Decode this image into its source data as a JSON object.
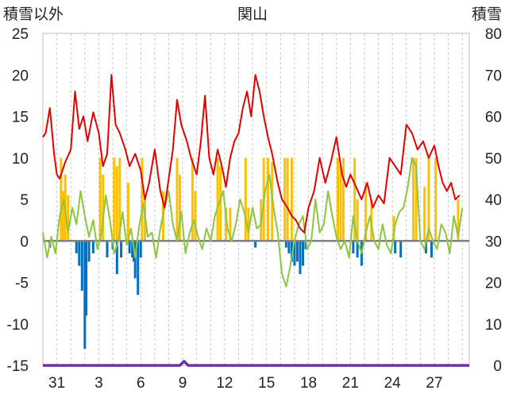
{
  "chart_data": {
    "type": "bar+line",
    "title": "関山",
    "left_axis_label": "積雪以外",
    "right_axis_label": "積雪",
    "left_ylim": [
      -15,
      25
    ],
    "left_ticks": [
      "25",
      "20",
      "15",
      "10",
      "5",
      "0",
      "-5",
      "-10",
      "-15"
    ],
    "right_ylim": [
      0,
      80
    ],
    "right_ticks": [
      "80",
      "70",
      "60",
      "50",
      "40",
      "30",
      "20",
      "10",
      "0"
    ],
    "x_labels": [
      "31",
      "3",
      "6",
      "9",
      "12",
      "15",
      "18",
      "21",
      "24",
      "27"
    ],
    "x_label_days": [
      2,
      5,
      8,
      11,
      14,
      17,
      20,
      23,
      26,
      29
    ],
    "x_range_days": [
      1,
      31.5
    ],
    "grid": {
      "vertical": true,
      "horizontal": false
    },
    "colors": {
      "max_temp": "#e60000",
      "min_temp": "#8cc63f",
      "precip": "#ffc000",
      "negative": "#0070c0",
      "snow": "#7030a0",
      "zero_line": "#808080",
      "grid": "#c8c8c8"
    },
    "max_temp": {
      "x": [
        1.0,
        1.2,
        1.5,
        1.8,
        2.0,
        2.2,
        2.6,
        3.0,
        3.3,
        3.6,
        3.9,
        4.2,
        4.6,
        5.0,
        5.3,
        5.6,
        5.9,
        6.2,
        6.5,
        6.9,
        7.2,
        7.6,
        8.0,
        8.3,
        8.6,
        9.0,
        9.4,
        9.7,
        10.0,
        10.3,
        10.6,
        10.9,
        11.3,
        11.6,
        12.0,
        12.3,
        12.6,
        12.9,
        13.2,
        13.5,
        13.8,
        14.1,
        14.4,
        14.7,
        15.0,
        15.3,
        15.6,
        15.9,
        16.2,
        16.5,
        16.8,
        17.1,
        17.4,
        17.8,
        18.1,
        18.5,
        18.8,
        19.1,
        19.4,
        19.7,
        20.0,
        20.4,
        20.8,
        21.2,
        21.6,
        22.0,
        22.4,
        22.7,
        23.0,
        23.4,
        23.8,
        24.2,
        24.6,
        25.0,
        25.4,
        25.8,
        26.2,
        26.6,
        27.0,
        27.4,
        27.8,
        28.2,
        28.6,
        29.0,
        29.3,
        29.6,
        29.9,
        30.2,
        30.5,
        30.8
      ],
      "values": [
        12.5,
        13.0,
        16.0,
        10.5,
        8.0,
        7.5,
        9.5,
        11.0,
        18.0,
        13.5,
        15.0,
        12.0,
        15.5,
        13.0,
        9.0,
        10.5,
        20.0,
        14.0,
        13.0,
        11.0,
        9.0,
        10.5,
        8.5,
        5.0,
        7.0,
        11.0,
        6.0,
        4.0,
        7.5,
        11.0,
        17.0,
        14.0,
        12.0,
        10.0,
        8.0,
        12.0,
        17.5,
        10.0,
        8.0,
        11.0,
        9.0,
        6.5,
        10.0,
        12.0,
        13.0,
        16.0,
        18.0,
        15.0,
        20.0,
        18.0,
        15.0,
        12.5,
        10.5,
        7.0,
        5.0,
        4.0,
        3.0,
        2.5,
        1.5,
        1.0,
        4.0,
        6.0,
        10.0,
        7.0,
        9.5,
        12.5,
        8.0,
        6.5,
        8.0,
        6.5,
        5.0,
        7.0,
        4.0,
        5.5,
        4.5,
        10.0,
        9.0,
        8.0,
        14.0,
        13.0,
        11.0,
        12.0,
        10.0,
        11.5,
        9.0,
        7.0,
        6.0,
        7.0,
        5.0,
        5.5
      ]
    },
    "min_temp": {
      "x": [
        1.0,
        1.3,
        1.6,
        1.9,
        2.2,
        2.5,
        2.8,
        3.1,
        3.4,
        3.7,
        4.0,
        4.3,
        4.6,
        4.9,
        5.2,
        5.5,
        5.8,
        6.1,
        6.4,
        6.7,
        7.0,
        7.3,
        7.6,
        7.9,
        8.2,
        8.5,
        8.8,
        9.1,
        9.4,
        9.7,
        10.0,
        10.3,
        10.6,
        10.9,
        11.2,
        11.5,
        11.8,
        12.1,
        12.4,
        12.7,
        13.0,
        13.3,
        13.6,
        13.9,
        14.2,
        14.5,
        14.8,
        15.1,
        15.4,
        15.7,
        16.0,
        16.3,
        16.6,
        16.9,
        17.2,
        17.5,
        17.8,
        18.1,
        18.4,
        18.7,
        19.0,
        19.3,
        19.6,
        19.9,
        20.2,
        20.5,
        20.8,
        21.1,
        21.4,
        21.7,
        22.0,
        22.3,
        22.6,
        22.9,
        23.2,
        23.5,
        23.8,
        24.1,
        24.4,
        24.7,
        25.0,
        25.3,
        25.6,
        25.9,
        26.2,
        26.5,
        26.8,
        27.1,
        27.4,
        27.7,
        28.0,
        28.3,
        28.6,
        28.9,
        29.2,
        29.5,
        29.8,
        30.1,
        30.4,
        30.7,
        31.0
      ],
      "values": [
        1.0,
        -2.0,
        0.5,
        -1.5,
        3.0,
        5.0,
        1.0,
        4.0,
        2.0,
        6.0,
        3.0,
        0.5,
        2.5,
        -1.0,
        1.0,
        5.5,
        2.5,
        -1.5,
        0.0,
        3.5,
        -0.5,
        1.5,
        -2.0,
        2.0,
        4.5,
        0.5,
        1.0,
        -2.0,
        1.5,
        4.0,
        6.0,
        2.0,
        0.0,
        3.5,
        -1.5,
        1.0,
        2.5,
        0.5,
        -1.0,
        1.5,
        0.0,
        3.0,
        4.5,
        6.0,
        1.5,
        0.0,
        2.0,
        5.0,
        3.5,
        1.0,
        4.0,
        1.5,
        2.0,
        6.0,
        8.0,
        4.0,
        1.0,
        -4.0,
        -5.5,
        -3.0,
        0.0,
        2.0,
        3.0,
        -1.0,
        0.0,
        5.0,
        1.0,
        2.0,
        6.0,
        3.0,
        0.5,
        -1.0,
        0.0,
        -2.0,
        3.0,
        0.0,
        -1.5,
        1.0,
        3.0,
        0.0,
        -1.0,
        2.0,
        -0.5,
        -1.5,
        2.0,
        3.5,
        4.0,
        6.5,
        10.0,
        9.0,
        0.0,
        -1.0,
        1.5,
        0.0,
        -1.0,
        2.0,
        1.0,
        -1.5,
        3.0,
        0.5,
        4.0
      ]
    },
    "precip_bars": {
      "x": [
        2.3,
        2.45,
        2.6,
        2.8,
        5.1,
        5.3,
        6.1,
        6.3,
        6.5,
        7.1,
        8.1,
        8.3,
        9.6,
        10.6,
        10.8,
        11.7,
        11.9,
        13.5,
        13.7,
        14.1,
        14.4,
        15.5,
        15.7,
        16.6,
        16.8,
        17.1,
        17.4,
        18.3,
        18.5,
        18.8,
        22.1,
        22.3,
        22.5,
        23.3,
        23.5,
        24.1,
        24.5,
        26.1,
        27.5,
        27.7,
        28.3,
        28.6,
        29.1,
        30.7
      ],
      "values": [
        10.0,
        6.0,
        8.0,
        5.5,
        10.0,
        8.0,
        10.0,
        9.0,
        10.0,
        7.0,
        10.0,
        5.0,
        6.0,
        10.0,
        8.0,
        10.0,
        6.0,
        10.0,
        9.0,
        4.0,
        4.0,
        10.0,
        4.0,
        5.0,
        10.0,
        10.0,
        9.5,
        10.0,
        10.0,
        10.0,
        10.0,
        9.0,
        10.0,
        10.0,
        5.0,
        7.0,
        5.0,
        3.0,
        10.0,
        10.0,
        6.5,
        10.0,
        10.0,
        5.0
      ]
    },
    "negative_bars": {
      "x": [
        1.5,
        3.4,
        3.6,
        3.8,
        4.0,
        4.1,
        4.3,
        4.6,
        5.6,
        6.0,
        6.3,
        6.6,
        7.2,
        7.4,
        7.5,
        7.6,
        7.8,
        8.0,
        16.2,
        18.4,
        18.6,
        18.8,
        19.0,
        19.2,
        19.4,
        19.6,
        19.8,
        23.2,
        23.5,
        23.8,
        26.2,
        26.6,
        28.4,
        28.8
      ],
      "values": [
        -0.8,
        -1.5,
        -3.0,
        -6.0,
        -13.0,
        -9.0,
        -2.5,
        -1.5,
        -2.0,
        -1.0,
        -4.0,
        -2.0,
        -1.5,
        -2.0,
        -2.5,
        -4.5,
        -6.5,
        -2.0,
        -0.8,
        -0.8,
        -1.5,
        -2.5,
        -3.0,
        -2.5,
        -4.0,
        -3.0,
        -1.0,
        -1.5,
        -2.0,
        -3.0,
        -1.5,
        -2.0,
        -1.5,
        -2.0
      ]
    },
    "snow_depth": {
      "x": [
        1.0,
        10.8,
        11.1,
        11.4,
        31.5
      ],
      "values": [
        0,
        0,
        1.0,
        0,
        0
      ]
    }
  }
}
